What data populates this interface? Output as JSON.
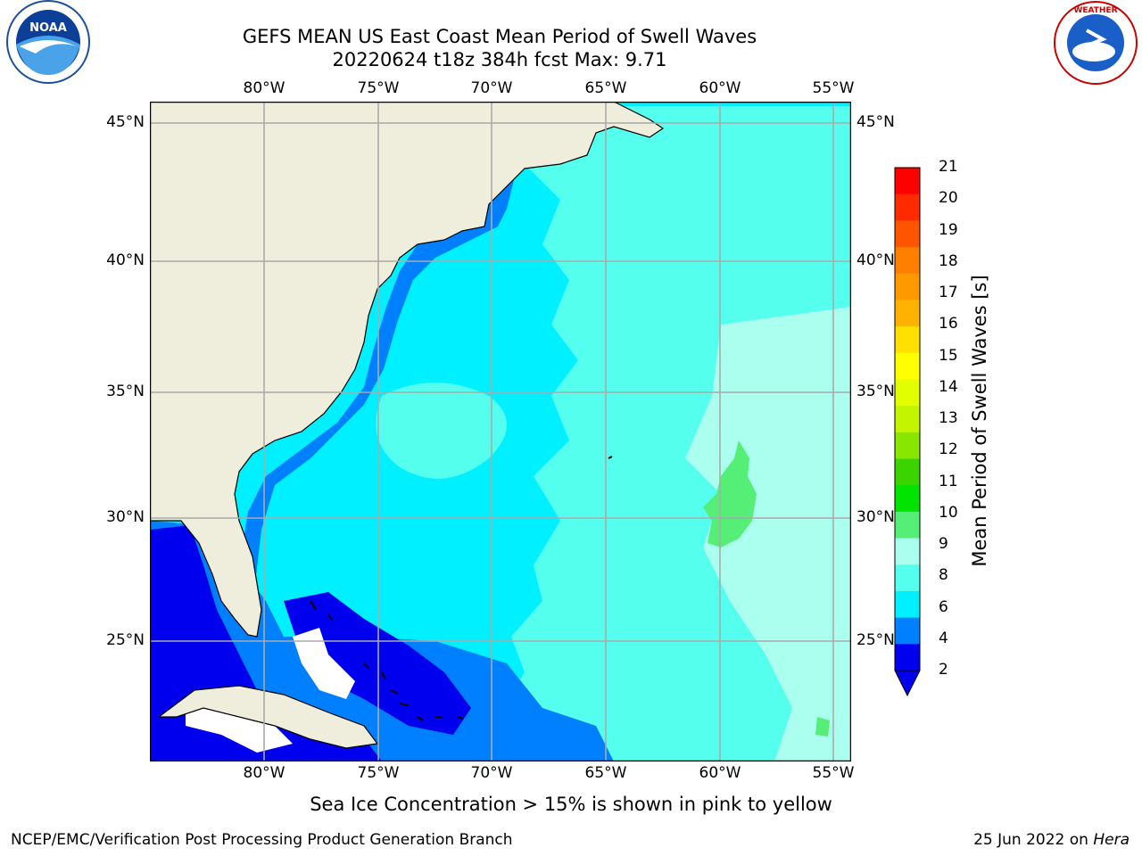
{
  "header": {
    "title_line1": "GEFS MEAN US East Coast Mean Period of Swell Waves",
    "title_line2": "20220624 t18z 384h fcst   Max: 9.71"
  },
  "logos": {
    "left": {
      "text": "NOAA",
      "icon": "noaa-logo-icon"
    },
    "right": {
      "text": "NATIONAL WEATHER SERVICE",
      "icon": "nws-logo-icon"
    }
  },
  "axes": {
    "lon_labels": [
      "80°W",
      "75°W",
      "70°W",
      "65°W",
      "60°W",
      "55°W"
    ],
    "lat_labels": [
      "45°N",
      "40°N",
      "35°N",
      "30°N",
      "25°N"
    ]
  },
  "colorbar": {
    "label": "Mean Period of Swell Waves [s]",
    "ticks": [
      "21",
      "20",
      "19",
      "18",
      "17",
      "16",
      "15",
      "14",
      "13",
      "12",
      "11",
      "10",
      "9",
      "8",
      "6",
      "4",
      "2"
    ],
    "colors": [
      "#ff0000",
      "#ff2a00",
      "#ff5500",
      "#ff7f00",
      "#ff9900",
      "#ffb300",
      "#ffe000",
      "#ffff00",
      "#e1ff00",
      "#c3f500",
      "#88e600",
      "#3cd400",
      "#00e400",
      "#55ee77",
      "#aaffee",
      "#55ffee",
      "#00f0ff",
      "#0080ff",
      "#0000ee"
    ],
    "extend_color": "#0000ee"
  },
  "map_colors": {
    "land": "#efeedc",
    "ocean_base": "#00f0ff",
    "lighter": "#55ffee",
    "lightest": "#aaffee",
    "mid_blue": "#0080ff",
    "deep_blue": "#0000ee",
    "green": "#55ee77",
    "grid": "#aaaaaa"
  },
  "footnote": "Sea Ice Concentration > 15% is shown in pink to yellow",
  "footer": {
    "left": "NCEP/EMC/Verification Post Processing Product Generation Branch",
    "date": "25 Jun 2022 on ",
    "host": "Hera"
  }
}
